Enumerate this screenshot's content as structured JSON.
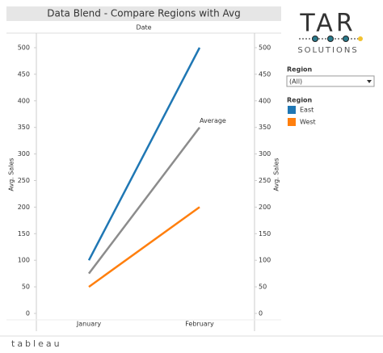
{
  "chart_data": {
    "type": "line",
    "title": "Data Blend - Compare Regions with Avg",
    "header": "Date",
    "categories": [
      "January",
      "February"
    ],
    "series": [
      {
        "name": "East",
        "color": "#1f77b4",
        "values": [
          100,
          500
        ]
      },
      {
        "name": "West",
        "color": "#ff7f0e",
        "values": [
          50,
          200
        ]
      }
    ],
    "reference_line": {
      "name": "Average",
      "color": "#8c8c8c",
      "values": [
        75,
        350
      ]
    },
    "y_label": "Avg. Sales",
    "ylim": [
      0,
      500
    ],
    "yticks": [
      0,
      50,
      100,
      150,
      200,
      250,
      300,
      350,
      400,
      450,
      500
    ],
    "y2_label": "Avg. Sales",
    "y2lim": [
      0,
      500
    ],
    "y2ticks": [
      0,
      50,
      100,
      150,
      200,
      250,
      300,
      350,
      400,
      450,
      500
    ],
    "legend_title": "Region"
  },
  "filter": {
    "title": "Region",
    "selected": "(All)"
  },
  "logo": {
    "top": "TAR",
    "bottom": "SOLUTIONS"
  },
  "footer": "tableau"
}
